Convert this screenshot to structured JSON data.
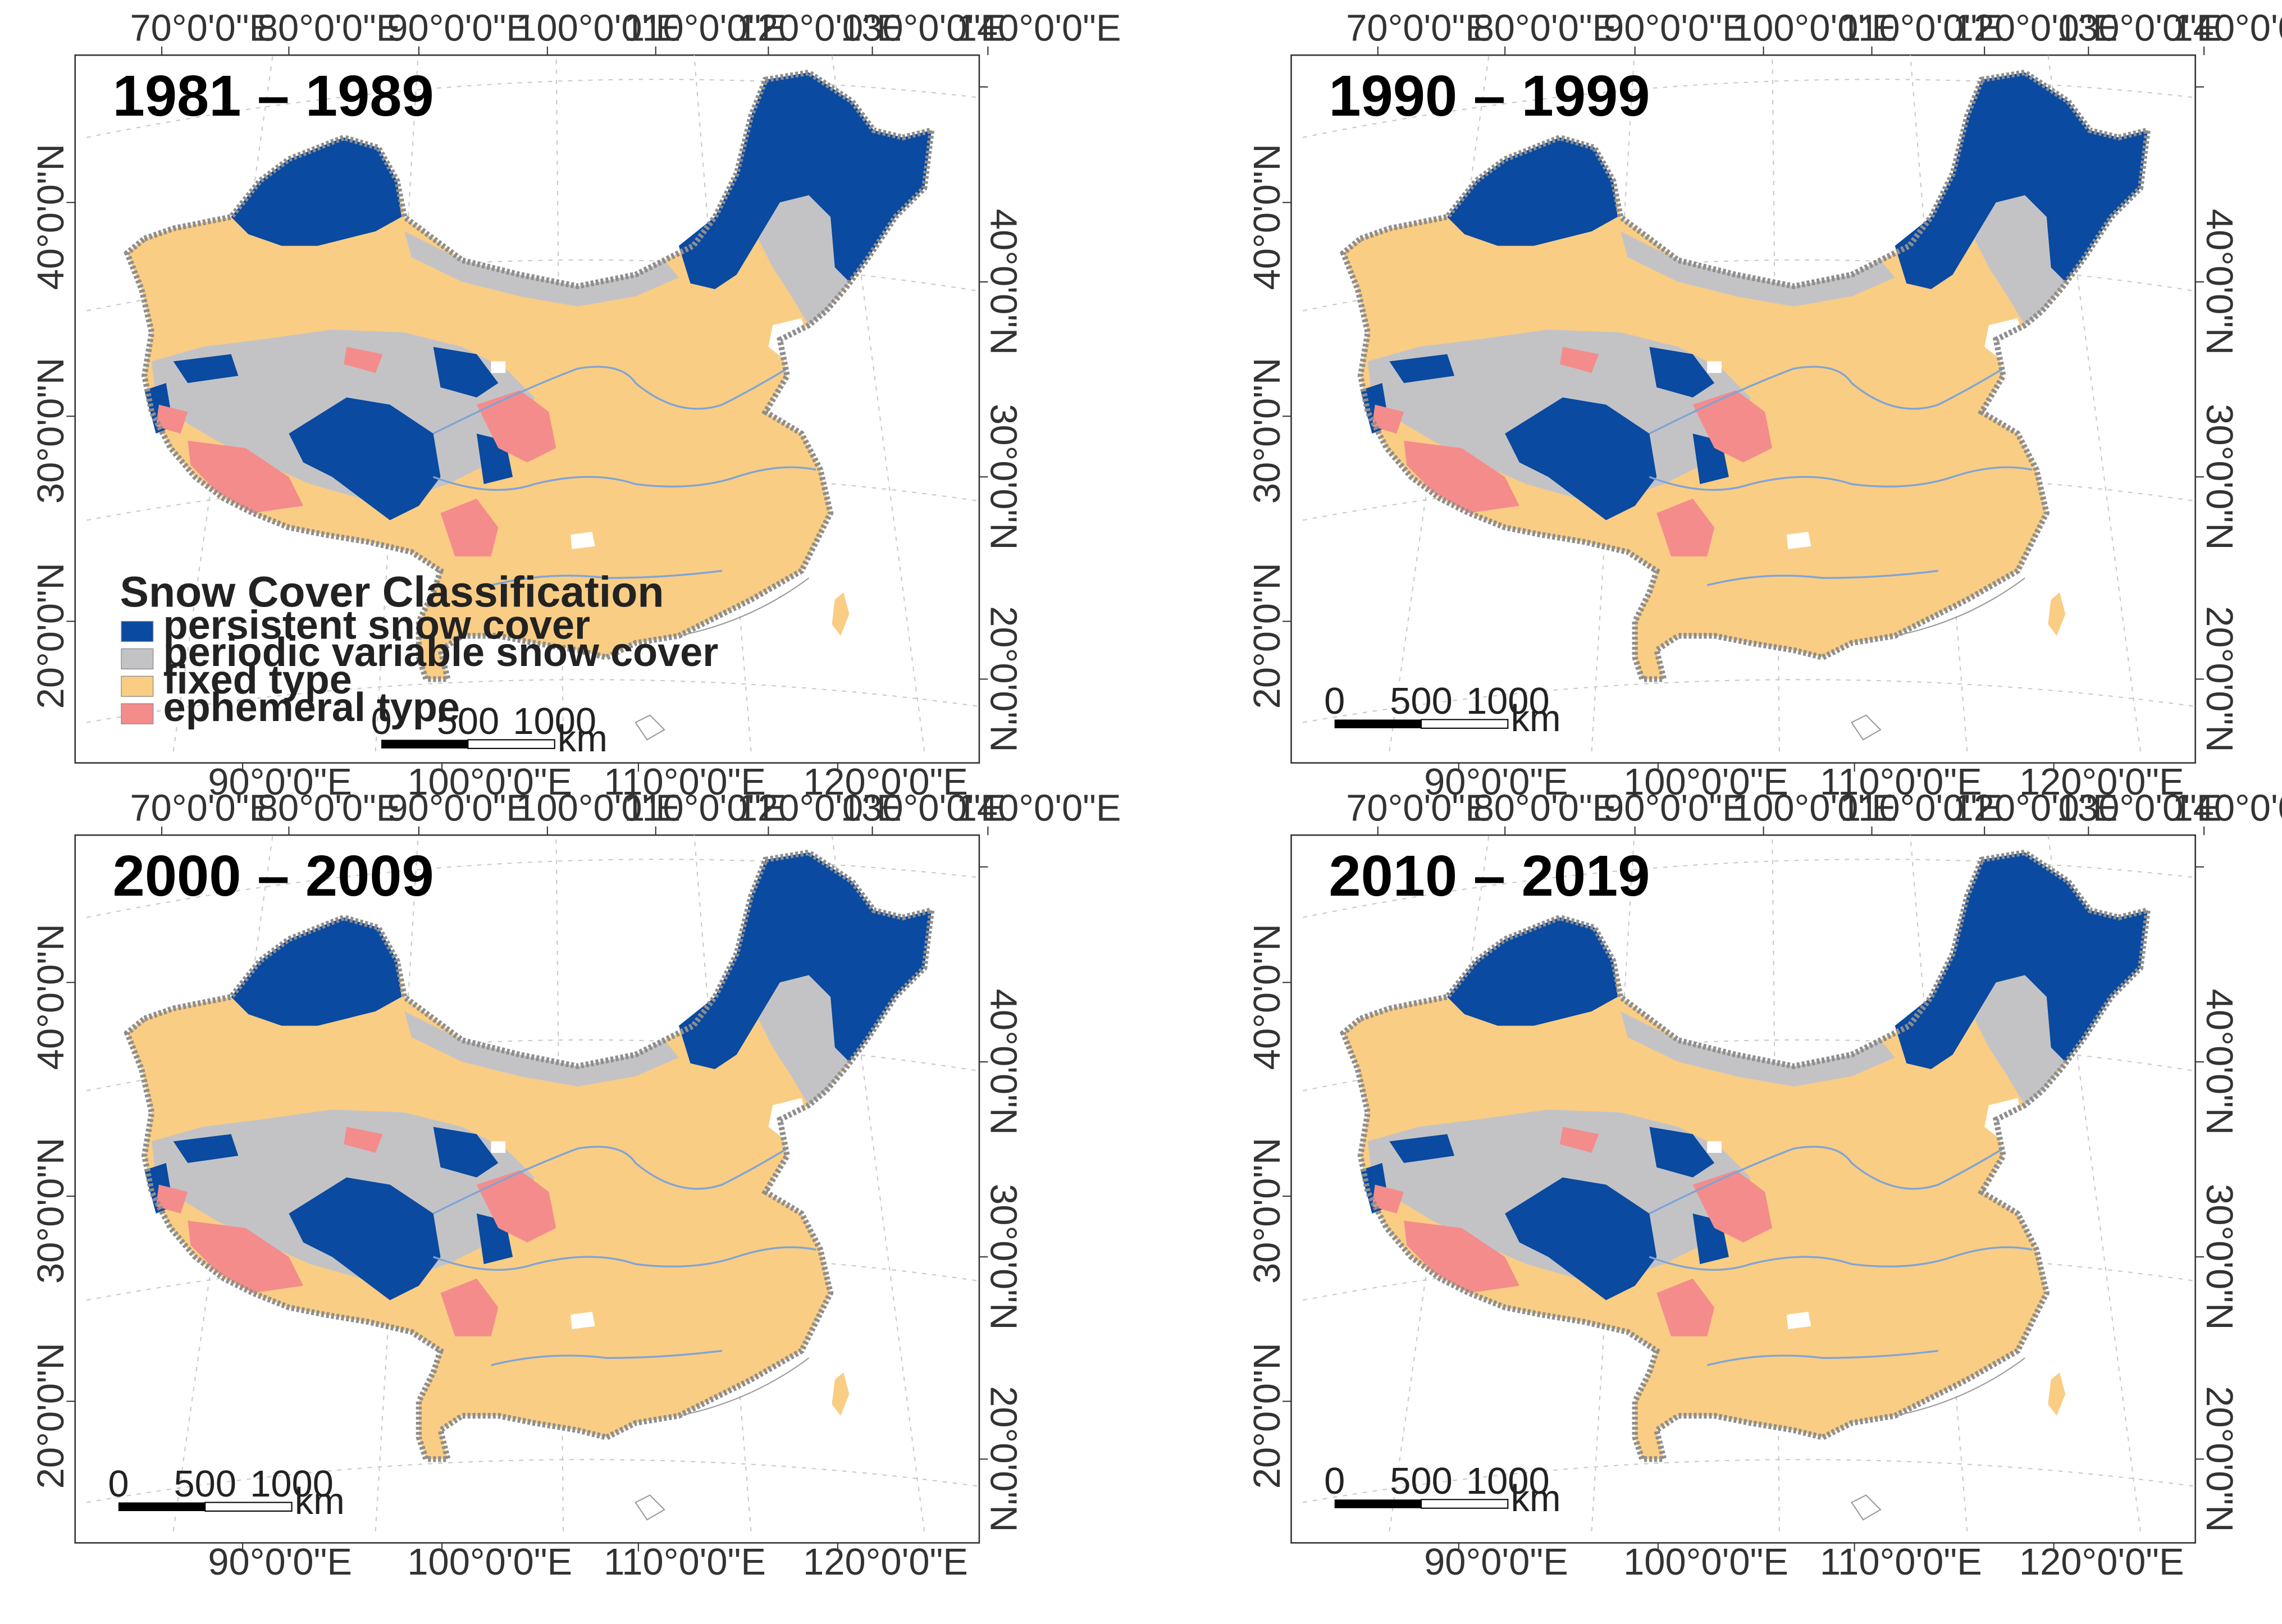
{
  "figure": {
    "colors": {
      "persistent": "#0a4aa0",
      "periodic": "#c3c3c6",
      "fixed": "#f9cd84",
      "ephemeral": "#f48c8c",
      "border": "#8e8e8e",
      "river": "#7fa4d6",
      "graticule": "#c8c8c8",
      "frame": "#333333"
    },
    "top_ticks": [
      "70°0'0\"E",
      "80°0'0\"E",
      "90°0'0\"E",
      "100°0'0\"E",
      "110°0'0\"E",
      "120°0'0\"E",
      "130°0'0\"E",
      "140°0'0\"E"
    ],
    "bottom_ticks": [
      "90°0'0\"E",
      "100°0'0\"E",
      "110°0'0\"E",
      "120°0'0\"E"
    ],
    "left_ticks": [
      "40°0'0\"N",
      "30°0'0\"N",
      "20°0'0\"N"
    ],
    "right_ticks": [
      "40°0'0\"N",
      "30°0'0\"N",
      "20°0'0\"N"
    ],
    "panels": [
      {
        "period": "1981 – 1989",
        "has_legend": true,
        "scale": {
          "labels": [
            "0",
            "500",
            "1000"
          ],
          "unit": "km"
        }
      },
      {
        "period": "1990 – 1999",
        "has_legend": false,
        "scale": {
          "labels": [
            "0",
            "500",
            "1000"
          ],
          "unit": "km"
        }
      },
      {
        "period": "2000 – 2009",
        "has_legend": false,
        "scale": {
          "labels": [
            "0",
            "500",
            "1000"
          ],
          "unit": "km"
        }
      },
      {
        "period": "2010 – 2019",
        "has_legend": false,
        "scale": {
          "labels": [
            "0",
            "500",
            "1000"
          ],
          "unit": "km"
        }
      }
    ],
    "legend": {
      "title": "Snow Cover Classification",
      "items": [
        {
          "label": "persistent snow cover",
          "key": "persistent"
        },
        {
          "label": "periodic variable snow  cover",
          "key": "periodic"
        },
        {
          "label": "fixed type",
          "key": "fixed"
        },
        {
          "label": "ephemeral type",
          "key": "ephemeral"
        }
      ]
    }
  }
}
